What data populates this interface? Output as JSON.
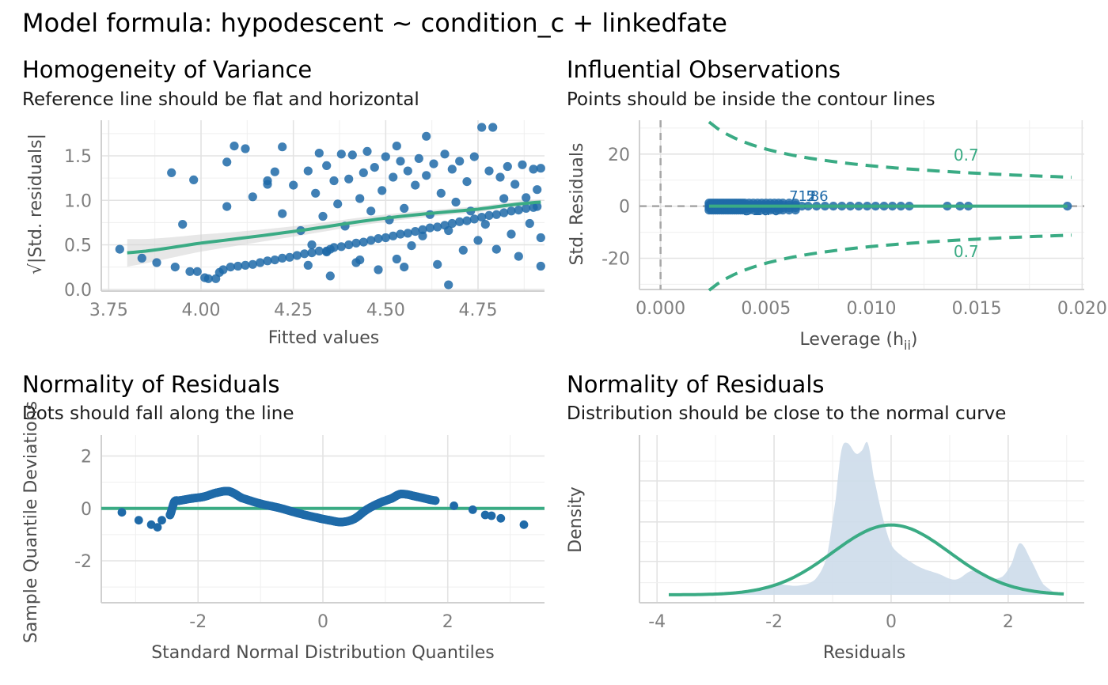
{
  "main_title": "Model formula: hypodescent ~ condition_c + linkedfate",
  "colors": {
    "points": "#1f6aa8",
    "reference": "#3aab84",
    "band": "#d4d4d4",
    "density_fill": "#cddcea"
  },
  "chart_data": [
    {
      "type": "scatter",
      "title": "Homogeneity of Variance",
      "subtitle": "Reference line should be flat and horizontal",
      "xlabel": "Fitted values",
      "ylabel": "√|Std. residuals|",
      "xlim": [
        3.73,
        4.93
      ],
      "ylim": [
        -0.02,
        1.9
      ],
      "xticks": [
        3.75,
        4.0,
        4.25,
        4.5,
        4.75
      ],
      "xtick_labels": [
        "3.75",
        "4.00",
        "4.25",
        "4.50",
        "4.75"
      ],
      "yticks": [
        0.0,
        0.5,
        1.0,
        1.5
      ],
      "ytick_labels": [
        "0.0",
        "0.5",
        "1.0",
        "1.5"
      ],
      "grid": true,
      "reference_smooth": {
        "x": [
          3.8,
          4.0,
          4.25,
          4.5,
          4.75,
          4.92
        ],
        "y": [
          0.41,
          0.52,
          0.65,
          0.8,
          0.9,
          0.98
        ]
      },
      "points": [
        [
          3.78,
          0.45
        ],
        [
          3.84,
          0.35
        ],
        [
          3.88,
          0.3
        ],
        [
          3.92,
          1.31
        ],
        [
          3.93,
          0.25
        ],
        [
          3.95,
          0.73
        ],
        [
          3.97,
          0.2
        ],
        [
          3.98,
          1.23
        ],
        [
          3.99,
          0.2
        ],
        [
          4.01,
          0.13
        ],
        [
          4.02,
          0.12
        ],
        [
          4.04,
          0.12
        ],
        [
          4.05,
          0.19
        ],
        [
          4.06,
          0.22
        ],
        [
          4.07,
          0.93
        ],
        [
          4.07,
          1.43
        ],
        [
          4.09,
          1.61
        ],
        [
          4.08,
          0.25
        ],
        [
          4.1,
          0.26
        ],
        [
          4.12,
          0.27
        ],
        [
          4.14,
          1.04
        ],
        [
          4.14,
          0.28
        ],
        [
          4.16,
          0.3
        ],
        [
          4.18,
          1.18
        ],
        [
          4.18,
          0.32
        ],
        [
          4.2,
          0.33
        ],
        [
          4.22,
          1.6
        ],
        [
          4.22,
          0.35
        ],
        [
          4.24,
          0.36
        ],
        [
          4.26,
          0.38
        ],
        [
          4.27,
          0.66
        ],
        [
          4.28,
          0.4
        ],
        [
          4.29,
          1.33
        ],
        [
          4.3,
          0.41
        ],
        [
          4.31,
          1.08
        ],
        [
          4.32,
          0.43
        ],
        [
          4.34,
          0.43
        ],
        [
          4.35,
          0.45
        ],
        [
          4.36,
          0.47
        ],
        [
          4.38,
          0.48
        ],
        [
          4.4,
          0.5
        ],
        [
          4.42,
          0.52
        ],
        [
          4.44,
          0.53
        ],
        [
          4.46,
          0.55
        ],
        [
          4.48,
          0.57
        ],
        [
          4.5,
          0.58
        ],
        [
          4.52,
          0.6
        ],
        [
          4.54,
          0.62
        ],
        [
          4.56,
          0.63
        ],
        [
          4.58,
          0.65
        ],
        [
          4.6,
          0.67
        ],
        [
          4.62,
          0.69
        ],
        [
          4.64,
          0.7
        ],
        [
          4.66,
          0.72
        ],
        [
          4.68,
          0.74
        ],
        [
          4.7,
          0.76
        ],
        [
          4.72,
          0.77
        ],
        [
          4.74,
          0.79
        ],
        [
          4.76,
          0.81
        ],
        [
          4.78,
          0.83
        ],
        [
          4.8,
          0.84
        ],
        [
          4.82,
          0.86
        ],
        [
          4.84,
          0.88
        ],
        [
          4.86,
          0.89
        ],
        [
          4.88,
          0.91
        ],
        [
          4.9,
          0.92
        ],
        [
          4.91,
          0.93
        ],
        [
          4.29,
          0.27
        ],
        [
          4.3,
          0.5
        ],
        [
          4.32,
          1.53
        ],
        [
          4.33,
          0.82
        ],
        [
          4.34,
          1.39
        ],
        [
          4.35,
          0.15
        ],
        [
          4.36,
          1.22
        ],
        [
          4.37,
          0.96
        ],
        [
          4.38,
          1.52
        ],
        [
          4.39,
          0.71
        ],
        [
          4.4,
          1.24
        ],
        [
          4.41,
          1.51
        ],
        [
          4.42,
          0.3
        ],
        [
          4.43,
          1.02
        ],
        [
          4.44,
          1.31
        ],
        [
          4.45,
          1.55
        ],
        [
          4.46,
          0.88
        ],
        [
          4.47,
          1.37
        ],
        [
          4.48,
          0.22
        ],
        [
          4.49,
          1.11
        ],
        [
          4.5,
          1.49
        ],
        [
          4.51,
          0.78
        ],
        [
          4.52,
          1.26
        ],
        [
          4.53,
          0.34
        ],
        [
          4.54,
          1.44
        ],
        [
          4.55,
          0.91
        ],
        [
          4.56,
          1.33
        ],
        [
          4.57,
          0.49
        ],
        [
          4.58,
          1.17
        ],
        [
          4.59,
          1.47
        ],
        [
          4.6,
          0.6
        ],
        [
          4.61,
          1.28
        ],
        [
          4.62,
          0.84
        ],
        [
          4.63,
          1.41
        ],
        [
          4.64,
          0.28
        ],
        [
          4.65,
          1.08
        ],
        [
          4.66,
          1.52
        ],
        [
          4.67,
          0.66
        ],
        [
          4.68,
          1.35
        ],
        [
          4.69,
          0.98
        ],
        [
          4.7,
          1.44
        ],
        [
          4.71,
          0.44
        ],
        [
          4.72,
          1.21
        ],
        [
          4.73,
          0.88
        ],
        [
          4.74,
          1.49
        ],
        [
          4.75,
          0.55
        ],
        [
          4.76,
          1.82
        ],
        [
          4.77,
          0.73
        ],
        [
          4.78,
          1.33
        ],
        [
          4.79,
          1.82
        ],
        [
          4.8,
          0.45
        ],
        [
          4.81,
          1.26
        ],
        [
          4.82,
          1.02
        ],
        [
          4.83,
          1.38
        ],
        [
          4.84,
          0.62
        ],
        [
          4.85,
          1.18
        ],
        [
          4.86,
          0.37
        ],
        [
          4.87,
          1.4
        ],
        [
          4.88,
          1.03
        ],
        [
          4.89,
          0.74
        ],
        [
          4.9,
          1.35
        ],
        [
          4.91,
          1.12
        ],
        [
          4.92,
          0.58
        ],
        [
          4.92,
          0.26
        ],
        [
          4.92,
          1.36
        ],
        [
          4.67,
          0.05
        ],
        [
          4.55,
          0.25
        ],
        [
          4.43,
          0.33
        ],
        [
          4.61,
          1.72
        ],
        [
          4.53,
          1.61
        ],
        [
          4.34,
          0.42
        ],
        [
          4.2,
          1.32
        ],
        [
          4.22,
          0.85
        ],
        [
          4.25,
          1.17
        ],
        [
          4.18,
          1.22
        ],
        [
          4.12,
          1.58
        ]
      ]
    },
    {
      "type": "scatter",
      "title": "Influential Observations",
      "subtitle": "Points should be inside the contour lines",
      "xlabel": "Leverage (h",
      "xlabel_sub": "ii",
      "xlabel_close": ")",
      "ylabel": "Std. Residuals",
      "xlim": [
        -0.001,
        0.0201
      ],
      "ylim": [
        -32,
        33
      ],
      "xticks": [
        0.0,
        0.005,
        0.01,
        0.015,
        0.02
      ],
      "xtick_labels": [
        "0.000",
        "0.005",
        "0.010",
        "0.015",
        "0.020"
      ],
      "yticks": [
        -20,
        0,
        20
      ],
      "ytick_labels": [
        "-20",
        "0",
        "20"
      ],
      "grid": true,
      "contour_label_upper": "0.7",
      "contour_label_lower": "0.7",
      "point_labels": [
        "712",
        "5",
        "86",
        "310",
        "140"
      ],
      "leverage_points": [
        0.0023,
        0.0024,
        0.0025,
        0.0026,
        0.0027,
        0.0028,
        0.0029,
        0.003,
        0.0031,
        0.0032,
        0.0033,
        0.0034,
        0.0035,
        0.0036,
        0.0037,
        0.0038,
        0.0039,
        0.004,
        0.0042,
        0.0044,
        0.0046,
        0.0048,
        0.005,
        0.0052,
        0.0054,
        0.0056,
        0.0058,
        0.0061,
        0.0064,
        0.0067,
        0.007,
        0.0074,
        0.0078,
        0.0082,
        0.0086,
        0.009,
        0.0094,
        0.0098,
        0.0102,
        0.0106,
        0.011,
        0.0114,
        0.0118,
        0.0136,
        0.0142,
        0.0146,
        0.0193
      ],
      "residual_spread": [
        -1.5,
        -0.6,
        0.4,
        1.2
      ]
    },
    {
      "type": "scatter",
      "title": "Normality of Residuals",
      "subtitle": "Dots should fall along the line",
      "xlabel": "Standard Normal Distribution Quantiles",
      "ylabel": "Sample Quantile Deviations",
      "xlim": [
        -3.55,
        3.55
      ],
      "ylim": [
        -3.6,
        2.8
      ],
      "xticks": [
        -2,
        0,
        2
      ],
      "xtick_labels": [
        "-2",
        "0",
        "2"
      ],
      "yticks": [
        -2,
        0,
        2
      ],
      "ytick_labels": [
        "-2",
        "0",
        "2"
      ],
      "grid": true,
      "qq_curve": {
        "x": [
          -3.22,
          -2.95,
          -2.75,
          -2.65,
          -2.58,
          -2.45,
          -2.38,
          -2.3,
          -2.1,
          -1.9,
          -1.7,
          -1.5,
          -1.3,
          -1.0,
          -0.7,
          -0.4,
          -0.1,
          0.1,
          0.3,
          0.5,
          0.7,
          0.9,
          1.1,
          1.25,
          1.5,
          1.8,
          2.1,
          2.4,
          2.6,
          2.7,
          2.85,
          3.22
        ],
        "y": [
          -0.15,
          -0.45,
          -0.62,
          -0.72,
          -0.45,
          -0.25,
          0.25,
          0.3,
          0.38,
          0.45,
          0.6,
          0.65,
          0.4,
          0.18,
          0.02,
          -0.18,
          -0.35,
          -0.45,
          -0.52,
          -0.4,
          -0.05,
          0.2,
          0.38,
          0.55,
          0.45,
          0.3,
          0.1,
          -0.05,
          -0.25,
          -0.28,
          -0.38,
          -0.62
        ]
      }
    },
    {
      "type": "area",
      "title": "Normality of Residuals",
      "subtitle": "Distribution should be close to the normal curve",
      "xlabel": "Residuals",
      "ylabel": "Density",
      "xlim": [
        -4.3,
        3.3
      ],
      "xticks": [
        -4,
        -2,
        0,
        2
      ],
      "xtick_labels": [
        "-4",
        "-2",
        "0",
        "2"
      ],
      "grid": true,
      "density_curve": {
        "x": [
          -3.6,
          -3.0,
          -2.4,
          -2.0,
          -1.6,
          -1.3,
          -1.1,
          -0.95,
          -0.85,
          -0.75,
          -0.6,
          -0.5,
          -0.4,
          -0.3,
          -0.15,
          0.0,
          0.2,
          0.5,
          0.8,
          1.1,
          1.4,
          1.7,
          1.9,
          2.05,
          2.2,
          2.4,
          2.6,
          2.9
        ],
        "y": [
          0.0,
          0.01,
          0.03,
          0.07,
          0.06,
          0.1,
          0.25,
          0.62,
          0.95,
          1.0,
          0.93,
          0.95,
          1.0,
          0.78,
          0.52,
          0.33,
          0.25,
          0.18,
          0.14,
          0.1,
          0.16,
          0.11,
          0.12,
          0.2,
          0.34,
          0.22,
          0.07,
          0.0
        ]
      },
      "normal_curve": {
        "mean": 0.0,
        "sd": 1.0,
        "x_range": [
          -3.8,
          2.95
        ],
        "peak_relative": 0.46
      }
    }
  ]
}
